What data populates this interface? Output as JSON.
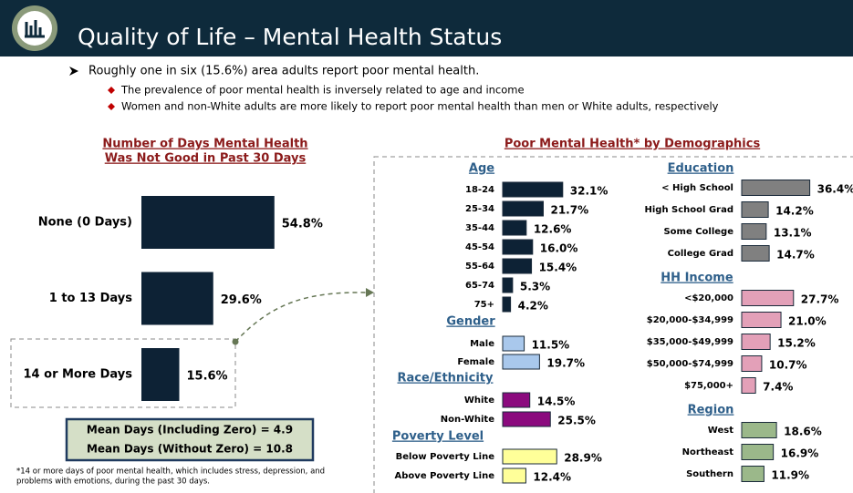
{
  "header": {
    "title": "Quality of Life – Mental Health Status"
  },
  "bullets": {
    "main": "Roughly one in six (15.6%) area adults report poor mental health.",
    "sub": [
      "The prevalence of poor mental health is inversely related to age and income",
      "Women and non-White adults are more likely to report poor mental health than men or White adults, respectively"
    ]
  },
  "demographics_title": "Poor Mental Health* by Demographics",
  "chart_data": [
    {
      "type": "bar",
      "title": [
        "Number of Days Mental Health",
        "Was Not Good in Past 30 Days"
      ],
      "categories": [
        "None (0 Days)",
        "1 to 13 Days",
        "14 or More Days"
      ],
      "values": [
        54.8,
        29.6,
        15.6
      ],
      "value_labels": [
        "54.8%",
        "29.6%",
        "15.6%"
      ],
      "color": "#0d2235"
    },
    {
      "type": "bar",
      "title": "Age",
      "categories": [
        "18-24",
        "25-34",
        "35-44",
        "45-54",
        "55-64",
        "65-74",
        "75+"
      ],
      "values": [
        32.1,
        21.7,
        12.6,
        16.0,
        15.4,
        5.3,
        4.2
      ],
      "value_labels": [
        "32.1%",
        "21.7%",
        "12.6%",
        "16.0%",
        "15.4%",
        "5.3%",
        "4.2%"
      ],
      "color": "#0d2235"
    },
    {
      "type": "bar",
      "title": "Gender",
      "categories": [
        "Male",
        "Female"
      ],
      "values": [
        11.5,
        19.7
      ],
      "value_labels": [
        "11.5%",
        "19.7%"
      ],
      "color": "#a9c8ec"
    },
    {
      "type": "bar",
      "title": "Race/Ethnicity",
      "categories": [
        "White",
        "Non-White"
      ],
      "values": [
        14.5,
        25.5
      ],
      "value_labels": [
        "14.5%",
        "25.5%"
      ],
      "color": "#8b0a7e"
    },
    {
      "type": "bar",
      "title": "Poverty Level",
      "categories": [
        "Below Poverty Line",
        "Above Poverty Line"
      ],
      "values": [
        28.9,
        12.4
      ],
      "value_labels": [
        "28.9%",
        "12.4%"
      ],
      "color": "#ffff99"
    },
    {
      "type": "bar",
      "title": "Education",
      "categories": [
        "< High School",
        "High School Grad",
        "Some College",
        "College Grad"
      ],
      "values": [
        36.4,
        14.2,
        13.1,
        14.7
      ],
      "value_labels": [
        "36.4%",
        "14.2%",
        "13.1%",
        "14.7%"
      ],
      "color": "#808080"
    },
    {
      "type": "bar",
      "title": "HH Income",
      "categories": [
        "<$20,000",
        "$20,000-$34,999",
        "$35,000-$49,999",
        "$50,000-$74,999",
        "$75,000+"
      ],
      "values": [
        27.7,
        21.0,
        15.2,
        10.7,
        7.4
      ],
      "value_labels": [
        "27.7%",
        "21.0%",
        "15.2%",
        "10.7%",
        "7.4%"
      ],
      "color": "#e3a0b8"
    },
    {
      "type": "bar",
      "title": "Region",
      "categories": [
        "West",
        "Northeast",
        "Southern"
      ],
      "values": [
        18.6,
        16.9,
        11.9
      ],
      "value_labels": [
        "18.6%",
        "16.9%",
        "11.9%"
      ],
      "color": "#9bb88a"
    }
  ],
  "mean_box": [
    "Mean Days (Including Zero) = 4.9",
    "Mean Days (Without Zero) = 10.8"
  ],
  "footnote": [
    "*14 or more days of poor mental health, which includes stress, depression, and",
    "problems with emotions, during the past 30 days."
  ]
}
